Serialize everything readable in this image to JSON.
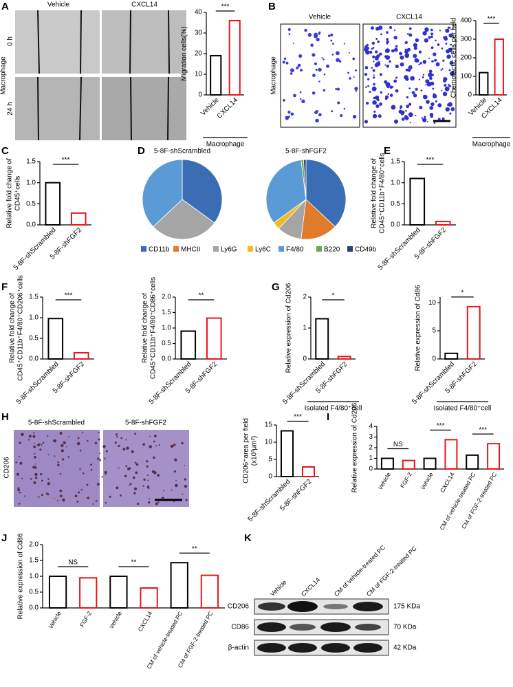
{
  "panel_labels": [
    "A",
    "B",
    "C",
    "D",
    "E",
    "F",
    "G",
    "H",
    "I",
    "J",
    "K"
  ],
  "image_labels": {
    "A": {
      "columns": [
        "Vehicle",
        "CXCL14"
      ],
      "rows": [
        "0 h",
        "24 h"
      ],
      "side": "Macrophage"
    },
    "B": {
      "columns": [
        "Vehicle",
        "CXCL14"
      ],
      "side": "Macrophage"
    },
    "H": {
      "columns": [
        "5-8F-shScrambled",
        "5-8F-shFGF2"
      ],
      "side": "CD206"
    }
  },
  "blot": {
    "lanes": [
      "Vehicle",
      "CXCL14",
      "CM of vehicle-treated PC",
      "CM of FGF-2-treated PC"
    ],
    "rows": [
      {
        "protein": "CD206",
        "size": "175 KDa"
      },
      {
        "protein": "CD86",
        "size": "70 KDa"
      },
      {
        "protein": "β-actin",
        "size": "42 KDa"
      }
    ]
  },
  "chart_data": [
    {
      "type": "bar",
      "categories": [
        "Vehicle",
        "CXCL14"
      ],
      "values": [
        19,
        36
      ],
      "colors": [
        "#000000",
        "#e8141b"
      ],
      "ylabel": [
        "Migration cells(%)"
      ],
      "ylim": [
        0,
        40
      ],
      "yticks": [
        0,
        10,
        20,
        30,
        40
      ],
      "annotations": [
        "***"
      ],
      "group_label": "Macrophage"
    },
    {
      "type": "bar",
      "categories": [
        "Vehicle",
        "CXCL14"
      ],
      "values": [
        120,
        300
      ],
      "colors": [
        "#000000",
        "#e8141b"
      ],
      "ylabel": [
        "Chemotactic cells per field"
      ],
      "ylim": [
        0,
        400
      ],
      "yticks": [
        0,
        100,
        200,
        300,
        400
      ],
      "annotations": [
        "***"
      ],
      "group_label": "Macrophage"
    },
    {
      "type": "bar",
      "categories": [
        "5-8F-shScrambled",
        "5-8F-shFGF2"
      ],
      "values": [
        1.0,
        0.28
      ],
      "colors": [
        "#000000",
        "#e8141b"
      ],
      "ylabel": [
        "Relative fold change of",
        "CD45⁺cells"
      ],
      "ylim": [
        0,
        1.5
      ],
      "yticks": [
        {
          "value": 0,
          "label": "0.0"
        },
        0.5,
        {
          "value": 1,
          "label": "1.0"
        },
        1.5
      ],
      "annotations": [
        "***"
      ]
    },
    {
      "type": "pie",
      "categories": [
        "CD11b",
        "MHCII",
        "Ly6G",
        "Ly6C",
        "F4/80",
        "B220",
        "CD49b"
      ],
      "colors": [
        "#3a6db3",
        "#e07b2c",
        "#a5a5a5",
        "#f2b920",
        "#5b9bd5",
        "#6aa84f",
        "#264478"
      ],
      "pies": [
        {
          "title": "5-8F-shScrambled",
          "values": [
            35,
            0,
            28,
            0,
            37,
            0,
            0
          ]
        },
        {
          "title": "5-8F-shFGF2",
          "values": [
            37,
            15,
            10,
            3,
            33,
            1,
            1
          ]
        }
      ]
    },
    {
      "type": "bar",
      "categories": [
        "5-8F-shScrambled",
        "5-8F-shFGF2"
      ],
      "values": [
        1.1,
        0.08
      ],
      "colors": [
        "#000000",
        "#e8141b"
      ],
      "ylabel": [
        "Relative fold change of",
        "CD45⁺CD11b⁺F4/80⁺cells"
      ],
      "ylim": [
        0,
        1.5
      ],
      "yticks": [
        {
          "value": 0,
          "label": "0.0"
        },
        0.5,
        {
          "value": 1,
          "label": "1.0"
        },
        1.5
      ],
      "annotations": [
        "***"
      ]
    },
    {
      "type": "bar",
      "categories": [
        "5-8F-shScrambled",
        "5-8F-shFGF2"
      ],
      "values": [
        0.98,
        0.15
      ],
      "colors": [
        "#000000",
        "#e8141b"
      ],
      "ylabel": [
        "Relative fold change of",
        "CD45⁺CD11b⁺F4/80⁺CD206⁺cells"
      ],
      "ylim": [
        0,
        1.5
      ],
      "yticks": [
        {
          "value": 0,
          "label": "0.0"
        },
        0.5,
        {
          "value": 1,
          "label": "1.0"
        },
        1.5
      ],
      "annotations": [
        "***"
      ]
    },
    {
      "type": "bar",
      "categories": [
        "5-8F-shScrambled",
        "5-8F-shFGF2"
      ],
      "values": [
        0.9,
        1.32
      ],
      "colors": [
        "#000000",
        "#e8141b"
      ],
      "ylabel": [
        "Relative fold change of",
        "CD45⁺CD11b⁺F4/80⁺CD86⁺cells"
      ],
      "ylim": [
        0,
        2
      ],
      "yticks": [
        {
          "value": 0,
          "label": "0.0"
        },
        0.5,
        {
          "value": 1,
          "label": "1.0"
        },
        1.5,
        {
          "value": 2,
          "label": "2.0"
        }
      ],
      "annotations": [
        "**"
      ]
    },
    {
      "type": "bar",
      "categories": [
        "5-8F-shScrambled",
        "5-8F-shFGF2"
      ],
      "values": [
        1.3,
        0.08
      ],
      "colors": [
        "#000000",
        "#e8141b"
      ],
      "ylabel": [
        "Relative expression of Cd206"
      ],
      "ylim": [
        0,
        2
      ],
      "yticks": [
        0,
        1,
        2
      ],
      "annotations": [
        "*"
      ],
      "group_label": "Isolated F4/80⁺cell"
    },
    {
      "type": "bar",
      "categories": [
        "5-8F-shScrambled",
        "5-8F-shFGF2"
      ],
      "values": [
        1.0,
        9.3
      ],
      "colors": [
        "#000000",
        "#e8141b"
      ],
      "ylabel": [
        "Relative expression of Cd86"
      ],
      "ylim": [
        0,
        11
      ],
      "yticks": [
        0,
        5,
        10
      ],
      "annotations": [
        "*"
      ],
      "group_label": "Isolated F4/80⁺cell"
    },
    {
      "type": "bar",
      "categories": [
        "5-8F-shScrambled",
        "5-8F-shFGF2"
      ],
      "values": [
        13.3,
        2.8
      ],
      "colors": [
        "#000000",
        "#e8141b"
      ],
      "ylabel": [
        "CD206⁺area per field",
        "(x10³μm²)"
      ],
      "ylim": [
        0,
        15
      ],
      "yticks": [
        0,
        5,
        10,
        15
      ],
      "annotations": [
        "***"
      ]
    },
    {
      "type": "bar",
      "categories": [
        "Vehicle",
        "FGF-2",
        "Vehicle",
        "CXCL14",
        "CM of vehicle-treated PC",
        "CM of FGF-2-treated PC"
      ],
      "values": [
        1.0,
        0.8,
        1.0,
        2.75,
        1.3,
        2.38
      ],
      "colors": [
        "#000000",
        "#e8141b",
        "#000000",
        "#e8141b",
        "#000000",
        "#e8141b"
      ],
      "ylabel": [
        "Relative expression of Cd206"
      ],
      "ylim": [
        0,
        4
      ],
      "yticks": [
        0,
        1,
        2,
        3,
        4
      ],
      "annotations": [
        "NS",
        "***",
        "***"
      ]
    },
    {
      "type": "bar",
      "categories": [
        "Vehicle",
        "FGF-2",
        "Vehicle",
        "CXCL14",
        "CM of vehicle-treated PC",
        "CM of FGF-2-treated PC"
      ],
      "values": [
        1.0,
        0.95,
        1.0,
        0.63,
        1.43,
        1.03
      ],
      "colors": [
        "#000000",
        "#e8141b",
        "#000000",
        "#e8141b",
        "#000000",
        "#e8141b"
      ],
      "ylabel": [
        "Relative expression of Cd86"
      ],
      "ylim": [
        0,
        2
      ],
      "yticks": [
        {
          "value": 0,
          "label": "0.0"
        },
        0.5,
        {
          "value": 1,
          "label": "1.0"
        },
        1.5,
        {
          "value": 2,
          "label": "2.0"
        }
      ],
      "annotations": [
        "NS",
        "**",
        "**"
      ]
    }
  ]
}
